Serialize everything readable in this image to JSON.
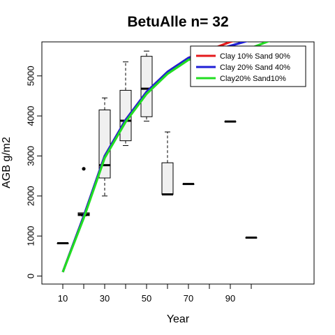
{
  "chart_data": {
    "type": "boxplot",
    "title": "BetuAlle n= 32",
    "xlabel": "Year",
    "ylabel": "AGB g/m2",
    "xlim": [
      0,
      130
    ],
    "ylim": [
      -200,
      5850
    ],
    "x_ticks": [
      10,
      20,
      30,
      40,
      50,
      60,
      70,
      80,
      90,
      100
    ],
    "x_tick_labels": [
      "10",
      "",
      "30",
      "",
      "50",
      "",
      "70",
      "",
      "90",
      ""
    ],
    "y_ticks": [
      0,
      1000,
      2000,
      3000,
      4000,
      5000
    ],
    "y_tick_labels": [
      "0",
      "1000",
      "2000",
      "3000",
      "4000",
      "5000"
    ],
    "boxes": [
      {
        "x": 10,
        "min": 820,
        "q1": 820,
        "median": 820,
        "q3": 820,
        "max": 820
      },
      {
        "x": 20,
        "min": 1500,
        "q1": 1510,
        "median": 1540,
        "q3": 1580,
        "max": 1580,
        "outliers": [
          2680
        ]
      },
      {
        "x": 30,
        "min": 2000,
        "q1": 2450,
        "median": 2770,
        "q3": 4150,
        "max": 4450
      },
      {
        "x": 40,
        "min": 3260,
        "q1": 3380,
        "median": 3880,
        "q3": 4640,
        "max": 5350
      },
      {
        "x": 50,
        "min": 3870,
        "q1": 3980,
        "median": 4680,
        "q3": 5490,
        "max": 5620
      },
      {
        "x": 60,
        "min": 2040,
        "q1": 2040,
        "median": 2040,
        "q3": 2830,
        "max": 3600
      },
      {
        "x": 70,
        "min": 2300,
        "q1": 2300,
        "median": 2300,
        "q3": 2300,
        "max": 2300
      },
      {
        "x": 80,
        "min": 5110,
        "q1": 5110,
        "median": 5110,
        "q3": 5110,
        "max": 5110
      },
      {
        "x": 90,
        "min": 3860,
        "q1": 3860,
        "median": 3860,
        "q3": 3860,
        "max": 3860
      },
      {
        "x": 100,
        "min": 960,
        "q1": 960,
        "median": 960,
        "q3": 960,
        "max": 960
      }
    ],
    "series": [
      {
        "name": "Clay 10% Sand 90%",
        "color": "#e41a1c",
        "x": [
          10,
          20,
          30,
          40,
          50,
          60,
          70,
          80,
          90,
          100
        ],
        "y": [
          100,
          1500,
          3000,
          3900,
          4600,
          5100,
          5450,
          5650,
          5850,
          6000
        ]
      },
      {
        "name": "Clay 20% Sand 40%",
        "color": "#1f1fd6",
        "x": [
          10,
          20,
          30,
          40,
          50,
          60,
          70,
          80,
          90,
          100
        ],
        "y": [
          100,
          1500,
          3000,
          3900,
          4600,
          5100,
          5450,
          5600,
          5750,
          5900
        ]
      },
      {
        "name": "Clay20% Sand10%",
        "color": "#22dd22",
        "x": [
          10,
          20,
          30,
          40,
          50,
          60,
          70,
          80,
          90,
          100,
          110
        ],
        "y": [
          100,
          1450,
          2950,
          3850,
          4550,
          5050,
          5400,
          5550,
          5700,
          5700,
          5900
        ]
      }
    ],
    "legend_position": "top-right",
    "grid": false
  }
}
